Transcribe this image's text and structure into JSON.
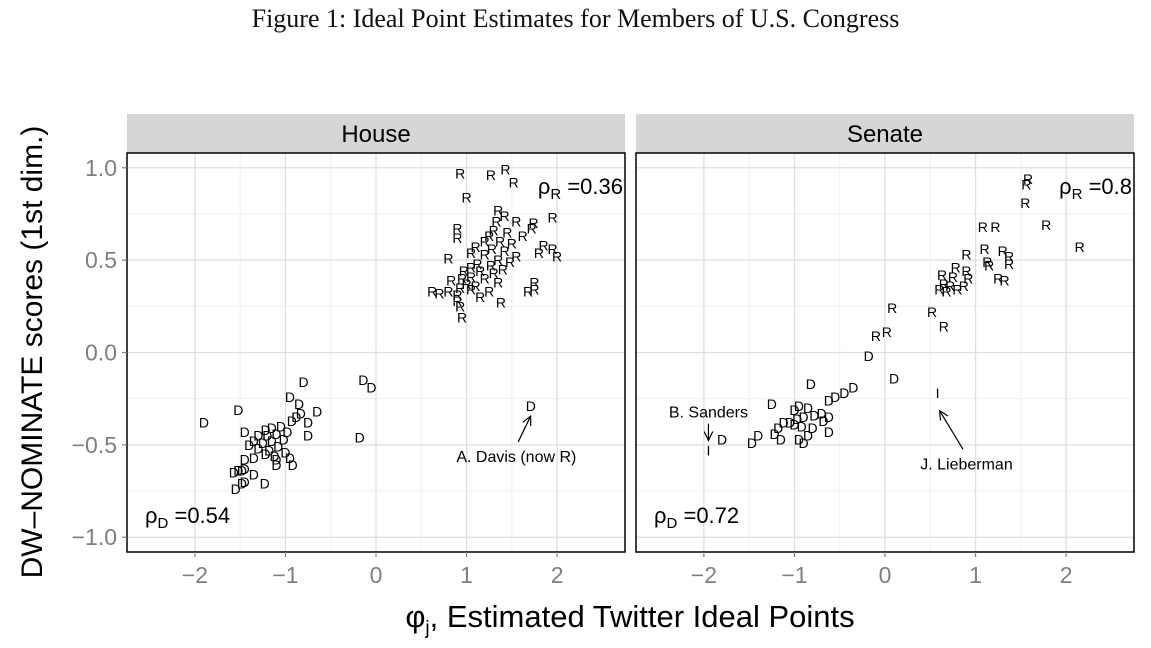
{
  "caption": "Figure 1: Ideal Point Estimates for Members of U.S. Congress",
  "ylabel": "DW–NOMINATE scores (1st dim.)",
  "xlabel": "φj, Estimated Twitter Ideal Points",
  "colors": {
    "strip": "#d6d6d6",
    "frame": "#000000",
    "grid_major": "#dedede",
    "grid_minor": "#f0f0f0",
    "tick_label": "#7f7f7f",
    "points": "#000000"
  },
  "chart_data": [
    {
      "type": "scatter",
      "panel": "House",
      "xlim": [
        -2.75,
        2.75
      ],
      "ylim": [
        -1.08,
        1.08
      ],
      "xticks": [
        {
          "v": -2,
          "label": "−2"
        },
        {
          "v": -1,
          "label": "−1"
        },
        {
          "v": 0,
          "label": "0"
        },
        {
          "v": 1,
          "label": "1"
        },
        {
          "v": 2,
          "label": "2"
        }
      ],
      "yticks": [
        {
          "v": 1.0,
          "label": "1.0"
        },
        {
          "v": 0.5,
          "label": "0.5"
        },
        {
          "v": 0.0,
          "label": "0.0"
        },
        {
          "v": -0.5,
          "label": "−0.5"
        },
        {
          "v": -1.0,
          "label": "−1.0"
        }
      ],
      "rho_D": "0.54",
      "rho_R": "0.36",
      "annotations": [
        {
          "label": "A. Davis (now R)",
          "point": [
            1.72,
            -0.29
          ],
          "text_at": [
            1.55,
            -0.56
          ]
        }
      ],
      "points": [
        {
          "x": 0.93,
          "y": 0.97,
          "party": "R"
        },
        {
          "x": 1.27,
          "y": 0.96,
          "party": "R"
        },
        {
          "x": 1.43,
          "y": 0.99,
          "party": "R"
        },
        {
          "x": 1.52,
          "y": 0.92,
          "party": "R"
        },
        {
          "x": 1.0,
          "y": 0.84,
          "party": "R"
        },
        {
          "x": 1.35,
          "y": 0.77,
          "party": "R"
        },
        {
          "x": 1.42,
          "y": 0.74,
          "party": "R"
        },
        {
          "x": 1.55,
          "y": 0.71,
          "party": "R"
        },
        {
          "x": 1.33,
          "y": 0.71,
          "party": "R"
        },
        {
          "x": 1.74,
          "y": 0.7,
          "party": "R"
        },
        {
          "x": 1.95,
          "y": 0.73,
          "party": "R"
        },
        {
          "x": 1.72,
          "y": 0.67,
          "party": "R"
        },
        {
          "x": 0.9,
          "y": 0.67,
          "party": "R"
        },
        {
          "x": 1.3,
          "y": 0.66,
          "party": "R"
        },
        {
          "x": 1.45,
          "y": 0.65,
          "party": "R"
        },
        {
          "x": 1.25,
          "y": 0.63,
          "party": "R"
        },
        {
          "x": 0.9,
          "y": 0.62,
          "party": "R"
        },
        {
          "x": 1.62,
          "y": 0.63,
          "party": "R"
        },
        {
          "x": 1.2,
          "y": 0.6,
          "party": "R"
        },
        {
          "x": 1.37,
          "y": 0.6,
          "party": "R"
        },
        {
          "x": 1.5,
          "y": 0.59,
          "party": "R"
        },
        {
          "x": 1.85,
          "y": 0.58,
          "party": "R"
        },
        {
          "x": 1.1,
          "y": 0.57,
          "party": "R"
        },
        {
          "x": 1.28,
          "y": 0.56,
          "party": "R"
        },
        {
          "x": 1.42,
          "y": 0.55,
          "party": "R"
        },
        {
          "x": 1.95,
          "y": 0.56,
          "party": "R"
        },
        {
          "x": 1.05,
          "y": 0.54,
          "party": "R"
        },
        {
          "x": 1.2,
          "y": 0.53,
          "party": "R"
        },
        {
          "x": 1.55,
          "y": 0.52,
          "party": "R"
        },
        {
          "x": 1.8,
          "y": 0.54,
          "party": "R"
        },
        {
          "x": 0.8,
          "y": 0.51,
          "party": "R"
        },
        {
          "x": 1.35,
          "y": 0.5,
          "party": "R"
        },
        {
          "x": 1.48,
          "y": 0.49,
          "party": "R"
        },
        {
          "x": 2.0,
          "y": 0.52,
          "party": "R"
        },
        {
          "x": 1.12,
          "y": 0.48,
          "party": "R"
        },
        {
          "x": 1.27,
          "y": 0.47,
          "party": "R"
        },
        {
          "x": 1.05,
          "y": 0.46,
          "party": "R"
        },
        {
          "x": 1.4,
          "y": 0.45,
          "party": "R"
        },
        {
          "x": 1.15,
          "y": 0.44,
          "party": "R"
        },
        {
          "x": 0.97,
          "y": 0.44,
          "party": "R"
        },
        {
          "x": 1.3,
          "y": 0.43,
          "party": "R"
        },
        {
          "x": 1.05,
          "y": 0.41,
          "party": "R"
        },
        {
          "x": 0.95,
          "y": 0.4,
          "party": "R"
        },
        {
          "x": 1.2,
          "y": 0.4,
          "party": "R"
        },
        {
          "x": 0.83,
          "y": 0.39,
          "party": "R"
        },
        {
          "x": 1.35,
          "y": 0.38,
          "party": "R"
        },
        {
          "x": 1.0,
          "y": 0.37,
          "party": "R"
        },
        {
          "x": 1.1,
          "y": 0.36,
          "party": "R"
        },
        {
          "x": 1.75,
          "y": 0.38,
          "party": "R"
        },
        {
          "x": 0.93,
          "y": 0.35,
          "party": "R"
        },
        {
          "x": 1.05,
          "y": 0.34,
          "party": "R"
        },
        {
          "x": 1.25,
          "y": 0.33,
          "party": "R"
        },
        {
          "x": 0.62,
          "y": 0.33,
          "party": "R"
        },
        {
          "x": 0.7,
          "y": 0.32,
          "party": "R"
        },
        {
          "x": 0.8,
          "y": 0.33,
          "party": "R"
        },
        {
          "x": 1.68,
          "y": 0.33,
          "party": "R"
        },
        {
          "x": 1.75,
          "y": 0.34,
          "party": "R"
        },
        {
          "x": 0.9,
          "y": 0.31,
          "party": "R"
        },
        {
          "x": 1.15,
          "y": 0.3,
          "party": "R"
        },
        {
          "x": 0.9,
          "y": 0.28,
          "party": "R"
        },
        {
          "x": 1.38,
          "y": 0.27,
          "party": "R"
        },
        {
          "x": 0.93,
          "y": 0.25,
          "party": "R"
        },
        {
          "x": 0.95,
          "y": 0.19,
          "party": "R"
        },
        {
          "x": 1.71,
          "y": -0.29,
          "party": "D"
        },
        {
          "x": -0.8,
          "y": -0.16,
          "party": "D"
        },
        {
          "x": -0.14,
          "y": -0.15,
          "party": "D"
        },
        {
          "x": -0.05,
          "y": -0.19,
          "party": "D"
        },
        {
          "x": -0.95,
          "y": -0.24,
          "party": "D"
        },
        {
          "x": -0.85,
          "y": -0.28,
          "party": "D"
        },
        {
          "x": -1.52,
          "y": -0.31,
          "party": "D"
        },
        {
          "x": -0.65,
          "y": -0.32,
          "party": "D"
        },
        {
          "x": -0.83,
          "y": -0.33,
          "party": "D"
        },
        {
          "x": -0.88,
          "y": -0.35,
          "party": "D"
        },
        {
          "x": -0.93,
          "y": -0.37,
          "party": "D"
        },
        {
          "x": -1.9,
          "y": -0.38,
          "party": "D"
        },
        {
          "x": -0.75,
          "y": -0.38,
          "party": "D"
        },
        {
          "x": -1.05,
          "y": -0.4,
          "party": "D"
        },
        {
          "x": -1.15,
          "y": -0.41,
          "party": "D"
        },
        {
          "x": -1.22,
          "y": -0.42,
          "party": "D"
        },
        {
          "x": -1.45,
          "y": -0.43,
          "party": "D"
        },
        {
          "x": -0.98,
          "y": -0.43,
          "party": "D"
        },
        {
          "x": -1.1,
          "y": -0.44,
          "party": "D"
        },
        {
          "x": -1.2,
          "y": -0.45,
          "party": "D"
        },
        {
          "x": -1.3,
          "y": -0.45,
          "party": "D"
        },
        {
          "x": -0.75,
          "y": -0.45,
          "party": "D"
        },
        {
          "x": -0.18,
          "y": -0.46,
          "party": "D"
        },
        {
          "x": -1.02,
          "y": -0.47,
          "party": "D"
        },
        {
          "x": -1.35,
          "y": -0.48,
          "party": "D"
        },
        {
          "x": -1.15,
          "y": -0.48,
          "party": "D"
        },
        {
          "x": -1.25,
          "y": -0.49,
          "party": "D"
        },
        {
          "x": -1.4,
          "y": -0.5,
          "party": "D"
        },
        {
          "x": -1.08,
          "y": -0.51,
          "party": "D"
        },
        {
          "x": -1.3,
          "y": -0.52,
          "party": "D"
        },
        {
          "x": -1.18,
          "y": -0.53,
          "party": "D"
        },
        {
          "x": -1.0,
          "y": -0.54,
          "party": "D"
        },
        {
          "x": -1.22,
          "y": -0.55,
          "party": "D"
        },
        {
          "x": -1.12,
          "y": -0.56,
          "party": "D"
        },
        {
          "x": -0.95,
          "y": -0.57,
          "party": "D"
        },
        {
          "x": -1.35,
          "y": -0.57,
          "party": "D"
        },
        {
          "x": -1.45,
          "y": -0.58,
          "party": "D"
        },
        {
          "x": -1.1,
          "y": -0.58,
          "party": "D"
        },
        {
          "x": -1.1,
          "y": -0.61,
          "party": "D"
        },
        {
          "x": -0.92,
          "y": -0.61,
          "party": "D"
        },
        {
          "x": -1.45,
          "y": -0.63,
          "party": "D"
        },
        {
          "x": -1.52,
          "y": -0.64,
          "party": "D"
        },
        {
          "x": -1.57,
          "y": -0.65,
          "party": "D"
        },
        {
          "x": -1.48,
          "y": -0.64,
          "party": "D"
        },
        {
          "x": -1.35,
          "y": -0.66,
          "party": "D"
        },
        {
          "x": -1.45,
          "y": -0.7,
          "party": "D"
        },
        {
          "x": -1.23,
          "y": -0.71,
          "party": "D"
        },
        {
          "x": -1.48,
          "y": -0.71,
          "party": "D"
        },
        {
          "x": -1.55,
          "y": -0.74,
          "party": "D"
        }
      ]
    },
    {
      "type": "scatter",
      "panel": "Senate",
      "xlim": [
        -2.75,
        2.75
      ],
      "ylim": [
        -1.08,
        1.08
      ],
      "xticks": [
        {
          "v": -2,
          "label": "−2"
        },
        {
          "v": -1,
          "label": "−1"
        },
        {
          "v": 0,
          "label": "0"
        },
        {
          "v": 1,
          "label": "1"
        },
        {
          "v": 2,
          "label": "2"
        }
      ],
      "yticks": [
        {
          "v": 1.0,
          "label": "1.0"
        },
        {
          "v": 0.5,
          "label": "0.5"
        },
        {
          "v": 0.0,
          "label": "0.0"
        },
        {
          "v": -0.5,
          "label": "−0.5"
        },
        {
          "v": -1.0,
          "label": "−1.0"
        }
      ],
      "rho_D": "0.72",
      "rho_R": "0.8",
      "annotations": [
        {
          "label": "B. Sanders",
          "point": [
            -1.95,
            -0.52
          ],
          "text_at": [
            -1.95,
            -0.32
          ]
        },
        {
          "label": "J. Lieberman",
          "point": [
            0.58,
            -0.26
          ],
          "text_at": [
            0.9,
            -0.6
          ]
        }
      ],
      "points": [
        {
          "x": 1.58,
          "y": 0.94,
          "party": "R"
        },
        {
          "x": 1.56,
          "y": 0.91,
          "party": "R"
        },
        {
          "x": 1.55,
          "y": 0.81,
          "party": "R"
        },
        {
          "x": 1.78,
          "y": 0.69,
          "party": "R"
        },
        {
          "x": 2.15,
          "y": 0.57,
          "party": "R"
        },
        {
          "x": 1.08,
          "y": 0.68,
          "party": "R"
        },
        {
          "x": 1.22,
          "y": 0.68,
          "party": "R"
        },
        {
          "x": 1.1,
          "y": 0.56,
          "party": "R"
        },
        {
          "x": 1.3,
          "y": 0.55,
          "party": "R"
        },
        {
          "x": 0.9,
          "y": 0.53,
          "party": "R"
        },
        {
          "x": 1.13,
          "y": 0.49,
          "party": "R"
        },
        {
          "x": 1.15,
          "y": 0.47,
          "party": "R"
        },
        {
          "x": 1.37,
          "y": 0.52,
          "party": "R"
        },
        {
          "x": 1.37,
          "y": 0.48,
          "party": "R"
        },
        {
          "x": 0.78,
          "y": 0.46,
          "party": "R"
        },
        {
          "x": 0.9,
          "y": 0.44,
          "party": "R"
        },
        {
          "x": 0.63,
          "y": 0.42,
          "party": "R"
        },
        {
          "x": 0.75,
          "y": 0.41,
          "party": "R"
        },
        {
          "x": 1.25,
          "y": 0.4,
          "party": "R"
        },
        {
          "x": 1.32,
          "y": 0.39,
          "party": "R"
        },
        {
          "x": 0.92,
          "y": 0.4,
          "party": "R"
        },
        {
          "x": 0.65,
          "y": 0.37,
          "party": "R"
        },
        {
          "x": 0.72,
          "y": 0.36,
          "party": "R"
        },
        {
          "x": 0.87,
          "y": 0.36,
          "party": "R"
        },
        {
          "x": 0.6,
          "y": 0.34,
          "party": "R"
        },
        {
          "x": 0.68,
          "y": 0.33,
          "party": "R"
        },
        {
          "x": 0.8,
          "y": 0.34,
          "party": "R"
        },
        {
          "x": 0.08,
          "y": 0.24,
          "party": "R"
        },
        {
          "x": 0.52,
          "y": 0.22,
          "party": "R"
        },
        {
          "x": 0.65,
          "y": 0.14,
          "party": "R"
        },
        {
          "x": 0.02,
          "y": 0.11,
          "party": "R"
        },
        {
          "x": -0.1,
          "y": 0.09,
          "party": "R"
        },
        {
          "x": -0.18,
          "y": -0.02,
          "party": "D"
        },
        {
          "x": 0.1,
          "y": -0.14,
          "party": "D"
        },
        {
          "x": -0.82,
          "y": -0.17,
          "party": "D"
        },
        {
          "x": -0.35,
          "y": -0.19,
          "party": "D"
        },
        {
          "x": -0.45,
          "y": -0.22,
          "party": "D"
        },
        {
          "x": -0.55,
          "y": -0.24,
          "party": "D"
        },
        {
          "x": -0.62,
          "y": -0.26,
          "party": "D"
        },
        {
          "x": -1.25,
          "y": -0.28,
          "party": "D"
        },
        {
          "x": -0.95,
          "y": -0.29,
          "party": "D"
        },
        {
          "x": -0.85,
          "y": -0.3,
          "party": "D"
        },
        {
          "x": -1.0,
          "y": -0.31,
          "party": "D"
        },
        {
          "x": -0.7,
          "y": -0.33,
          "party": "D"
        },
        {
          "x": -0.78,
          "y": -0.34,
          "party": "D"
        },
        {
          "x": -0.62,
          "y": -0.35,
          "party": "D"
        },
        {
          "x": -0.9,
          "y": -0.35,
          "party": "D"
        },
        {
          "x": -0.97,
          "y": -0.36,
          "party": "D"
        },
        {
          "x": -0.68,
          "y": -0.37,
          "party": "D"
        },
        {
          "x": -1.05,
          "y": -0.38,
          "party": "D"
        },
        {
          "x": -1.12,
          "y": -0.38,
          "party": "D"
        },
        {
          "x": -1.0,
          "y": -0.39,
          "party": "D"
        },
        {
          "x": -0.92,
          "y": -0.4,
          "party": "D"
        },
        {
          "x": -0.8,
          "y": -0.41,
          "party": "D"
        },
        {
          "x": -1.18,
          "y": -0.41,
          "party": "D"
        },
        {
          "x": -0.62,
          "y": -0.43,
          "party": "D"
        },
        {
          "x": -1.22,
          "y": -0.44,
          "party": "D"
        },
        {
          "x": -0.85,
          "y": -0.45,
          "party": "D"
        },
        {
          "x": -1.4,
          "y": -0.45,
          "party": "D"
        },
        {
          "x": -0.95,
          "y": -0.47,
          "party": "D"
        },
        {
          "x": -1.15,
          "y": -0.47,
          "party": "D"
        },
        {
          "x": -1.8,
          "y": -0.47,
          "party": "D"
        },
        {
          "x": -1.47,
          "y": -0.49,
          "party": "D"
        },
        {
          "x": -0.9,
          "y": -0.49,
          "party": "D"
        },
        {
          "x": -1.95,
          "y": -0.53,
          "party": "I"
        },
        {
          "x": 0.58,
          "y": -0.22,
          "party": "I"
        }
      ]
    }
  ]
}
